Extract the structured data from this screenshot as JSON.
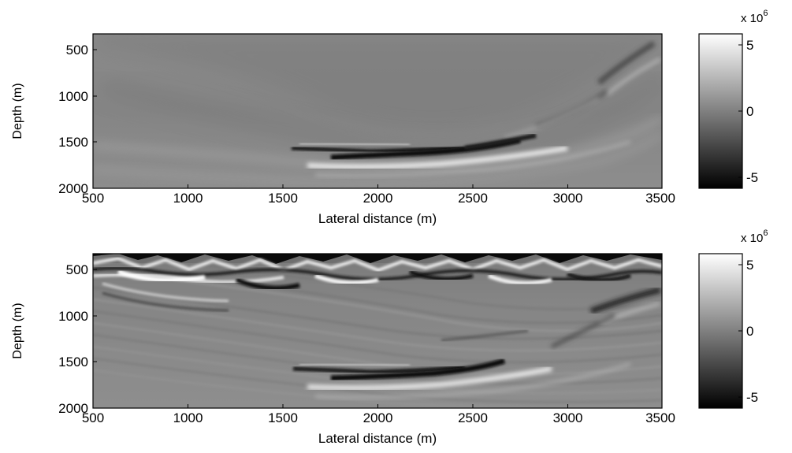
{
  "figure": {
    "panels": [
      {
        "xlabel": "Lateral distance (m)",
        "ylabel": "Depth (m)",
        "x_ticks": [
          "500",
          "1000",
          "1500",
          "2000",
          "2500",
          "3000",
          "3500"
        ],
        "y_ticks": [
          "500",
          "1000",
          "1500",
          "2000"
        ],
        "colorbar": {
          "exponent_label": "x 10",
          "exponent": "6",
          "ticks": [
            "5",
            "0",
            "-5"
          ]
        }
      },
      {
        "xlabel": "Lateral distance (m)",
        "ylabel": "Depth (m)",
        "x_ticks": [
          "500",
          "1000",
          "1500",
          "2000",
          "2500",
          "3000",
          "3500"
        ],
        "y_ticks": [
          "500",
          "1000",
          "1500",
          "2000"
        ],
        "colorbar": {
          "exponent_label": "x 10",
          "exponent": "6",
          "ticks": [
            "5",
            "0",
            "-5"
          ]
        }
      }
    ]
  }
}
